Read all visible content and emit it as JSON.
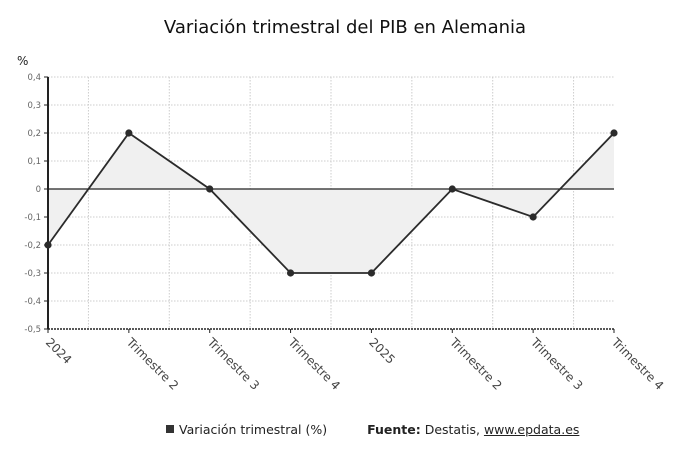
{
  "title": "Variación trimestral del PIB en Alemania",
  "unit_label": "%",
  "legend": {
    "series_label": "Variación trimestral (%)",
    "source_label": "Fuente:",
    "source_text": "Destatis,",
    "source_link": "www.epdata.es"
  },
  "colors": {
    "line": "#2b2b2b",
    "fill": "#f0f0f0",
    "grid": "#cccccc",
    "axis": "#222222"
  },
  "chart_data": {
    "type": "area",
    "title": "Variación trimestral del PIB en Alemania",
    "xlabel": "",
    "ylabel": "%",
    "categories": [
      "2024",
      "Trimestre 2",
      "Trimestre 3",
      "Trimestre 4",
      "2025",
      "Trimestre 2",
      "Trimestre 3",
      "Trimestre 4"
    ],
    "series": [
      {
        "name": "Variación trimestral (%)",
        "values": [
          -0.2,
          0.2,
          0.0,
          -0.3,
          -0.3,
          0.0,
          -0.1,
          0.2
        ]
      }
    ],
    "yticks": [
      "0,4",
      "0,3",
      "0,2",
      "0,1",
      "0",
      "-0,1",
      "-0,2",
      "-0,3",
      "-0,4",
      "-0,5"
    ],
    "ylim": [
      -0.5,
      0.4
    ],
    "grid": true,
    "legend_position": "bottom"
  }
}
